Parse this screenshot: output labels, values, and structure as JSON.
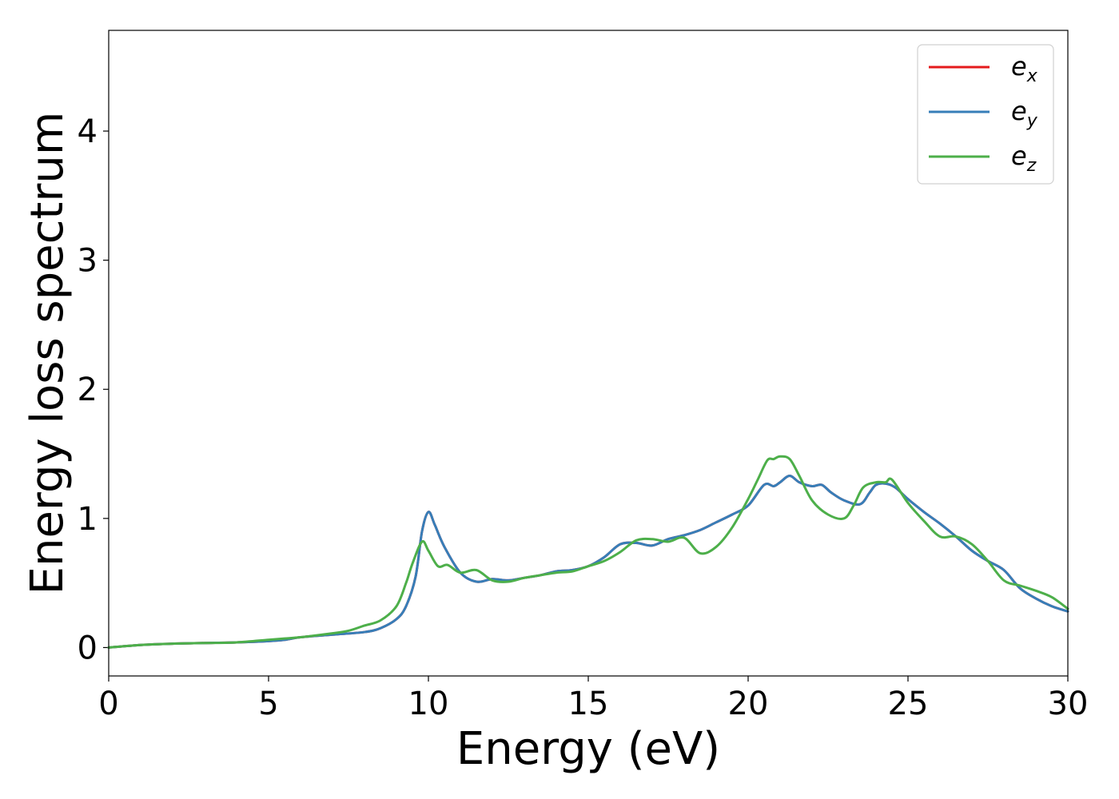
{
  "chart_data": {
    "type": "line",
    "title": "",
    "xlabel": "Energy (eV)",
    "ylabel": "Energy loss spectrum",
    "xlim": [
      0,
      30
    ],
    "ylim": [
      -0.22,
      4.78
    ],
    "x_ticks": [
      "0",
      "5",
      "10",
      "15",
      "20",
      "25",
      "30"
    ],
    "y_ticks": [
      "0",
      "1",
      "2",
      "3",
      "4"
    ],
    "grid": false,
    "legend_position": "top-right",
    "series": [
      {
        "name": "e_x",
        "legend_base": "e",
        "legend_sub": "x",
        "color": "#e41a1c",
        "x": [
          0,
          1,
          2,
          3,
          4,
          5,
          5.5,
          6,
          7,
          8,
          8.5,
          9,
          9.3,
          9.6,
          9.8,
          10,
          10.2,
          10.5,
          11,
          11.5,
          12,
          12.5,
          13,
          13.5,
          14,
          14.5,
          15,
          15.5,
          16,
          16.5,
          17,
          17.5,
          18,
          18.5,
          19,
          19.5,
          20,
          20.5,
          20.8,
          21,
          21.3,
          21.6,
          22,
          22.3,
          22.6,
          23,
          23.5,
          23.8,
          24,
          24.3,
          24.6,
          25,
          25.5,
          26,
          26.5,
          27,
          27.5,
          28,
          28.5,
          29,
          29.5,
          30
        ],
        "y": [
          0,
          0.02,
          0.03,
          0.035,
          0.04,
          0.05,
          0.06,
          0.08,
          0.1,
          0.12,
          0.15,
          0.22,
          0.32,
          0.55,
          0.9,
          1.05,
          0.95,
          0.78,
          0.58,
          0.51,
          0.53,
          0.52,
          0.54,
          0.56,
          0.59,
          0.6,
          0.63,
          0.7,
          0.8,
          0.81,
          0.79,
          0.84,
          0.87,
          0.91,
          0.97,
          1.03,
          1.1,
          1.26,
          1.25,
          1.28,
          1.33,
          1.28,
          1.25,
          1.26,
          1.2,
          1.14,
          1.11,
          1.2,
          1.26,
          1.27,
          1.24,
          1.15,
          1.05,
          0.96,
          0.86,
          0.75,
          0.67,
          0.6,
          0.46,
          0.38,
          0.32,
          0.28
        ]
      },
      {
        "name": "e_y",
        "legend_base": "e",
        "legend_sub": "y",
        "color": "#377eb8",
        "x": [
          0,
          1,
          2,
          3,
          4,
          5,
          5.5,
          6,
          7,
          8,
          8.5,
          9,
          9.3,
          9.6,
          9.8,
          10,
          10.2,
          10.5,
          11,
          11.5,
          12,
          12.5,
          13,
          13.5,
          14,
          14.5,
          15,
          15.5,
          16,
          16.5,
          17,
          17.5,
          18,
          18.5,
          19,
          19.5,
          20,
          20.5,
          20.8,
          21,
          21.3,
          21.6,
          22,
          22.3,
          22.6,
          23,
          23.5,
          23.8,
          24,
          24.3,
          24.6,
          25,
          25.5,
          26,
          26.5,
          27,
          27.5,
          28,
          28.5,
          29,
          29.5,
          30
        ],
        "y": [
          0,
          0.02,
          0.03,
          0.035,
          0.04,
          0.05,
          0.06,
          0.08,
          0.1,
          0.12,
          0.15,
          0.22,
          0.32,
          0.55,
          0.9,
          1.05,
          0.95,
          0.78,
          0.58,
          0.51,
          0.53,
          0.52,
          0.54,
          0.56,
          0.59,
          0.6,
          0.63,
          0.7,
          0.8,
          0.81,
          0.79,
          0.84,
          0.87,
          0.91,
          0.97,
          1.03,
          1.1,
          1.26,
          1.25,
          1.28,
          1.33,
          1.28,
          1.25,
          1.26,
          1.2,
          1.14,
          1.11,
          1.2,
          1.26,
          1.27,
          1.24,
          1.15,
          1.05,
          0.96,
          0.86,
          0.75,
          0.67,
          0.6,
          0.46,
          0.38,
          0.32,
          0.28
        ]
      },
      {
        "name": "e_z",
        "legend_base": "e",
        "legend_sub": "z",
        "color": "#4daf4a",
        "x": [
          0,
          1,
          2,
          3,
          4,
          5,
          5.5,
          6,
          7,
          7.5,
          8,
          8.5,
          9,
          9.3,
          9.5,
          9.8,
          10,
          10.3,
          10.6,
          11,
          11.5,
          12,
          12.5,
          13,
          13.5,
          14,
          14.5,
          15,
          15.5,
          16,
          16.5,
          17,
          17.5,
          18,
          18.5,
          19,
          19.5,
          20,
          20.3,
          20.6,
          20.8,
          21,
          21.3,
          21.6,
          22,
          22.5,
          23,
          23.3,
          23.6,
          24,
          24.3,
          24.5,
          25,
          25.5,
          26,
          26.5,
          27,
          27.5,
          28,
          28.5,
          29,
          29.5,
          30
        ],
        "y": [
          0,
          0.02,
          0.03,
          0.035,
          0.04,
          0.06,
          0.07,
          0.08,
          0.11,
          0.13,
          0.17,
          0.21,
          0.32,
          0.5,
          0.65,
          0.82,
          0.75,
          0.63,
          0.64,
          0.58,
          0.6,
          0.52,
          0.51,
          0.54,
          0.56,
          0.58,
          0.59,
          0.63,
          0.67,
          0.74,
          0.83,
          0.84,
          0.82,
          0.85,
          0.73,
          0.78,
          0.93,
          1.15,
          1.3,
          1.45,
          1.46,
          1.48,
          1.46,
          1.33,
          1.14,
          1.03,
          1.0,
          1.1,
          1.24,
          1.28,
          1.28,
          1.3,
          1.12,
          0.98,
          0.86,
          0.86,
          0.8,
          0.67,
          0.52,
          0.48,
          0.44,
          0.39,
          0.3
        ]
      }
    ]
  }
}
